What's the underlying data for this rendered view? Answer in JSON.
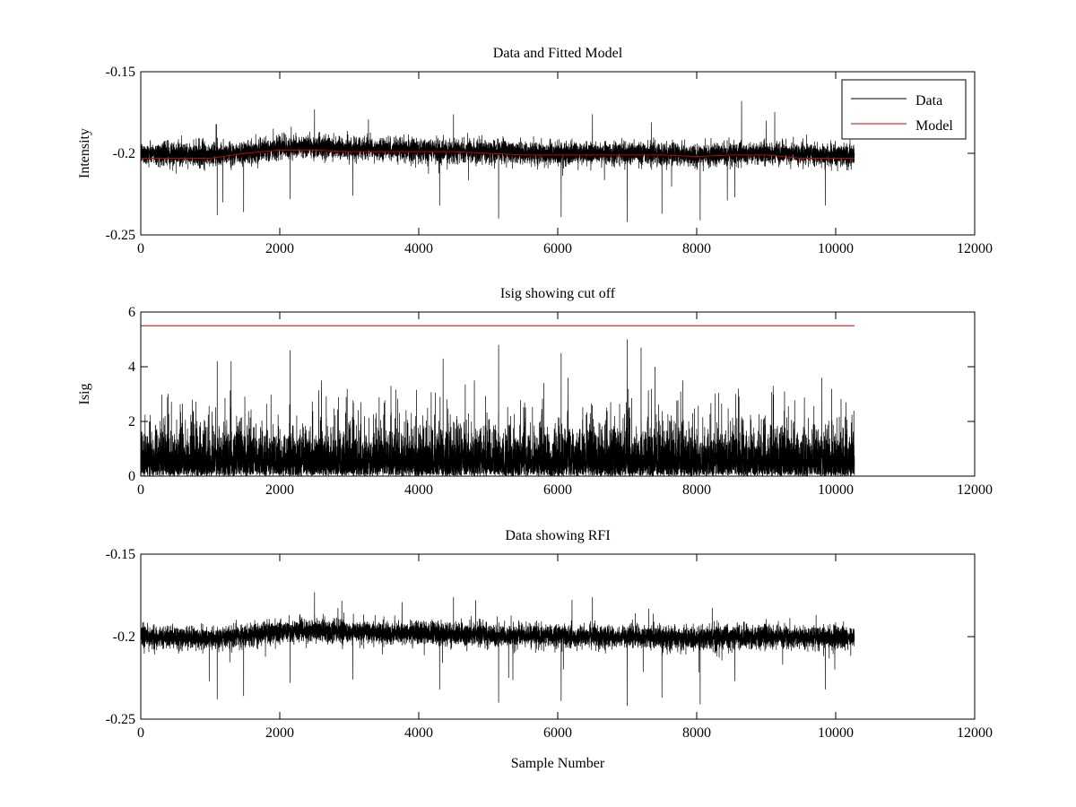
{
  "chart_data": [
    {
      "type": "line",
      "title": "Data and Fitted Model",
      "xlabel": "",
      "ylabel": "Intensity",
      "xlim": [
        0,
        12000
      ],
      "ylim": [
        -0.25,
        -0.15
      ],
      "xticks": [
        0,
        2000,
        4000,
        6000,
        8000,
        10000,
        12000
      ],
      "xtick_labels": [
        "0",
        "2000",
        "4000",
        "6000",
        "8000",
        "10000",
        "12000"
      ],
      "yticks": [
        -0.25,
        -0.2,
        -0.15
      ],
      "ytick_labels": [
        "-0.25",
        "-0.2",
        "-0.15"
      ],
      "grid": false,
      "legend_position": "top-right",
      "series": [
        {
          "name": "Data",
          "color": "#000000",
          "x_range": [
            0,
            10270
          ],
          "points": 10270,
          "baseline": [
            [
              0,
              -0.2
            ],
            [
              1000,
              -0.201
            ],
            [
              1600,
              -0.199
            ],
            [
              2000,
              -0.197
            ],
            [
              2400,
              -0.196
            ],
            [
              3000,
              -0.197
            ],
            [
              4000,
              -0.198
            ],
            [
              5000,
              -0.199
            ],
            [
              6000,
              -0.2
            ],
            [
              7000,
              -0.2
            ],
            [
              8000,
              -0.201
            ],
            [
              9000,
              -0.2
            ],
            [
              10270,
              -0.201
            ]
          ],
          "spread": 0.006,
          "extremes": [
            [
              1100,
              -0.238
            ],
            [
              1180,
              -0.23
            ],
            [
              1480,
              -0.236
            ],
            [
              2150,
              -0.228
            ],
            [
              2500,
              -0.173
            ],
            [
              3050,
              -0.226
            ],
            [
              4300,
              -0.232
            ],
            [
              4500,
              -0.176
            ],
            [
              5150,
              -0.24
            ],
            [
              6050,
              -0.239
            ],
            [
              6500,
              -0.176
            ],
            [
              7000,
              -0.242
            ],
            [
              7350,
              -0.181
            ],
            [
              7500,
              -0.237
            ],
            [
              8050,
              -0.241
            ],
            [
              8550,
              -0.227
            ],
            [
              9000,
              -0.18
            ],
            [
              9850,
              -0.232
            ]
          ]
        },
        {
          "name": "Model",
          "color": "#cc0000",
          "x": [
            0,
            500,
            1000,
            1500,
            2000,
            2500,
            3000,
            3500,
            4000,
            4500,
            5000,
            5500,
            6000,
            6500,
            7000,
            7500,
            8000,
            8500,
            9000,
            9500,
            10270
          ],
          "y": [
            -0.203,
            -0.203,
            -0.203,
            -0.2,
            -0.198,
            -0.198,
            -0.199,
            -0.199,
            -0.199,
            -0.199,
            -0.2,
            -0.201,
            -0.201,
            -0.201,
            -0.201,
            -0.201,
            -0.202,
            -0.201,
            -0.201,
            -0.203,
            -0.203
          ]
        }
      ]
    },
    {
      "type": "line",
      "title": "Isig showing cut off",
      "xlabel": "",
      "ylabel": "Isig",
      "xlim": [
        0,
        12000
      ],
      "ylim": [
        0,
        6
      ],
      "xticks": [
        0,
        2000,
        4000,
        6000,
        8000,
        10000,
        12000
      ],
      "xtick_labels": [
        "0",
        "2000",
        "4000",
        "6000",
        "8000",
        "10000",
        "12000"
      ],
      "yticks": [
        0,
        2,
        4,
        6
      ],
      "ytick_labels": [
        "0",
        "2",
        "4",
        "6"
      ],
      "grid": false,
      "series": [
        {
          "color": "#000000",
          "x_range": [
            0,
            10270
          ],
          "points": 10270,
          "typical_max": 2.0,
          "peaks": [
            [
              1100,
              4.2
            ],
            [
              1300,
              4.2
            ],
            [
              2150,
              4.6
            ],
            [
              2600,
              3.5
            ],
            [
              3600,
              3.3
            ],
            [
              4350,
              4.3
            ],
            [
              4800,
              3.5
            ],
            [
              5150,
              4.8
            ],
            [
              5800,
              3.4
            ],
            [
              6050,
              4.5
            ],
            [
              6150,
              3.6
            ],
            [
              7000,
              5.0
            ],
            [
              7200,
              4.7
            ],
            [
              7400,
              4.0
            ],
            [
              7800,
              3.5
            ],
            [
              8600,
              3.2
            ],
            [
              9100,
              3.3
            ],
            [
              9800,
              3.6
            ],
            [
              10150,
              2.7
            ]
          ]
        },
        {
          "color": "#cc0000",
          "x": [
            0,
            10270
          ],
          "y": [
            5.5,
            5.5
          ]
        }
      ]
    },
    {
      "type": "line",
      "title": "Data showing RFI",
      "xlabel": "Sample Number",
      "ylabel": "",
      "xlim": [
        0,
        12000
      ],
      "ylim": [
        -0.25,
        -0.15
      ],
      "xticks": [
        0,
        2000,
        4000,
        6000,
        8000,
        10000,
        12000
      ],
      "xtick_labels": [
        "0",
        "2000",
        "4000",
        "6000",
        "8000",
        "10000",
        "12000"
      ],
      "yticks": [
        -0.25,
        -0.2,
        -0.15
      ],
      "ytick_labels": [
        "-0.25",
        "-0.2",
        "-0.15"
      ],
      "grid": false,
      "series": [
        {
          "color": "#000000",
          "x_range": [
            0,
            10270
          ],
          "points": 10270,
          "baseline": [
            [
              0,
              -0.2
            ],
            [
              1000,
              -0.201
            ],
            [
              1600,
              -0.199
            ],
            [
              2000,
              -0.197
            ],
            [
              2400,
              -0.196
            ],
            [
              3000,
              -0.197
            ],
            [
              4000,
              -0.198
            ],
            [
              5000,
              -0.199
            ],
            [
              6000,
              -0.2
            ],
            [
              7000,
              -0.2
            ],
            [
              8000,
              -0.201
            ],
            [
              9000,
              -0.2
            ],
            [
              10270,
              -0.201
            ]
          ],
          "spread": 0.006,
          "extremes": [
            [
              1100,
              -0.238
            ],
            [
              1480,
              -0.236
            ],
            [
              2150,
              -0.228
            ],
            [
              2500,
              -0.173
            ],
            [
              3050,
              -0.226
            ],
            [
              4300,
              -0.232
            ],
            [
              4500,
              -0.176
            ],
            [
              5150,
              -0.24
            ],
            [
              6050,
              -0.239
            ],
            [
              6500,
              -0.176
            ],
            [
              7000,
              -0.242
            ],
            [
              7500,
              -0.237
            ],
            [
              8050,
              -0.241
            ],
            [
              8550,
              -0.227
            ],
            [
              9850,
              -0.232
            ]
          ]
        }
      ]
    }
  ]
}
